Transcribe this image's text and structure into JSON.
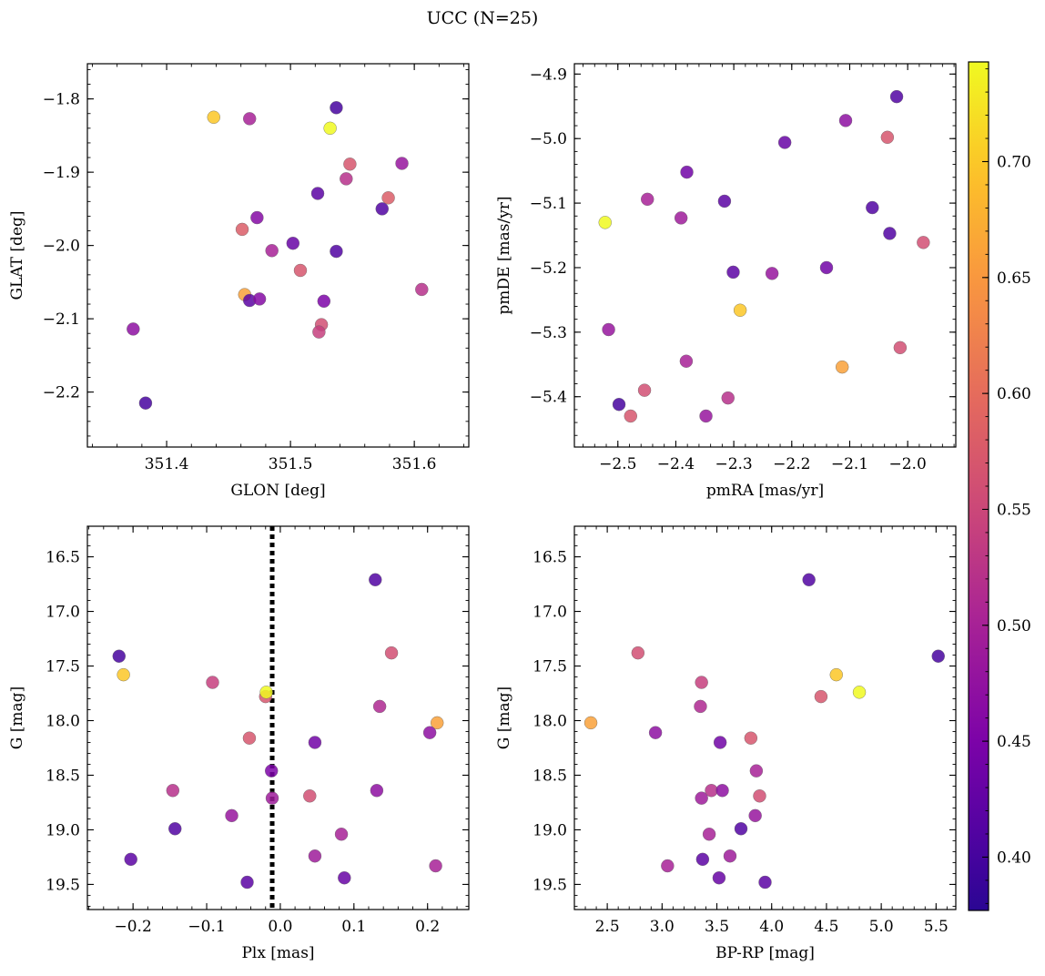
{
  "figure": {
    "title": "UCC (N=25)"
  },
  "colorbar": {
    "min": 0.377,
    "max": 0.743,
    "ticks": [
      0.4,
      0.45,
      0.5,
      0.55,
      0.6,
      0.65,
      0.7
    ],
    "tick_labels": [
      "0.40",
      "0.45",
      "0.50",
      "0.55",
      "0.60",
      "0.65",
      "0.70"
    ],
    "colormap": "plasma"
  },
  "chart_data": [
    {
      "type": "scatter",
      "panel": "top-left",
      "xlabel": "GLON [deg]",
      "ylabel": "GLAT [deg]",
      "xlim": [
        351.336,
        351.644
      ],
      "ylim": [
        -2.275,
        -1.752
      ],
      "y_inverted": false,
      "xticks": [
        351.4,
        351.5,
        351.6
      ],
      "xtick_labels": [
        "351.4",
        "351.5",
        "351.6"
      ],
      "yticks": [
        -1.8,
        -1.9,
        -2.0,
        -2.1,
        -2.2
      ],
      "ytick_labels": [
        "−1.8",
        "−1.9",
        "−2.0",
        "−2.1",
        "−2.2"
      ],
      "xminor": 0.02,
      "yminor": 0.02,
      "x": [
        351.438,
        351.467,
        351.537,
        351.532,
        351.548,
        351.59,
        351.579,
        351.522,
        351.473,
        351.461,
        351.485,
        351.502,
        351.508,
        351.574,
        351.606,
        351.463,
        351.467,
        351.475,
        351.527,
        351.525,
        351.523,
        351.373,
        351.383,
        351.537,
        351.545
      ],
      "y": [
        -1.825,
        -1.827,
        -1.812,
        -1.84,
        -1.889,
        -1.888,
        -1.935,
        -1.929,
        -1.962,
        -1.978,
        -2.007,
        -1.997,
        -2.034,
        -1.95,
        -2.06,
        -2.067,
        -2.075,
        -2.073,
        -2.076,
        -2.108,
        -2.118,
        -2.114,
        -2.215,
        -2.008,
        -1.909
      ],
      "color_values": [
        0.7,
        0.5,
        0.4,
        0.743,
        0.57,
        0.48,
        0.58,
        0.42,
        0.46,
        0.58,
        0.5,
        0.43,
        0.57,
        0.41,
        0.52,
        0.66,
        0.42,
        0.46,
        0.45,
        0.56,
        0.54,
        0.47,
        0.4,
        0.41,
        0.52
      ]
    },
    {
      "type": "scatter",
      "panel": "top-right",
      "xlabel": "pmRA [mas/yr]",
      "ylabel": "pmDE [mas/yr]",
      "xlim": [
        -2.575,
        -1.917
      ],
      "ylim": [
        -5.478,
        -4.884
      ],
      "y_inverted": false,
      "xticks": [
        -2.5,
        -2.4,
        -2.3,
        -2.2,
        -2.1,
        -2.0
      ],
      "xtick_labels": [
        "−2.5",
        "−2.4",
        "−2.3",
        "−2.2",
        "−2.1",
        "−2.0"
      ],
      "yticks": [
        -4.9,
        -5.0,
        -5.1,
        -5.2,
        -5.3,
        -5.4
      ],
      "ytick_labels": [
        "−4.9",
        "−5.0",
        "−5.1",
        "−5.2",
        "−5.3",
        "−5.4"
      ],
      "xminor": 0.02,
      "yminor": 0.02,
      "x": [
        -2.019,
        -2.107,
        -2.035,
        -2.212,
        -2.381,
        -2.449,
        -2.316,
        -2.391,
        -2.522,
        -2.061,
        -2.031,
        -1.973,
        -2.14,
        -2.234,
        -2.301,
        -2.289,
        -2.516,
        -2.382,
        -2.013,
        -2.113,
        -2.498,
        -2.454,
        -2.478,
        -2.348,
        -2.31
      ],
      "y": [
        -4.935,
        -4.972,
        -4.998,
        -5.006,
        -5.052,
        -5.094,
        -5.097,
        -5.123,
        -5.13,
        -5.107,
        -5.147,
        -5.161,
        -5.2,
        -5.209,
        -5.207,
        -5.266,
        -5.296,
        -5.345,
        -5.324,
        -5.354,
        -5.412,
        -5.39,
        -5.43,
        -5.43,
        -5.402
      ],
      "color_values": [
        0.41,
        0.47,
        0.57,
        0.43,
        0.44,
        0.5,
        0.42,
        0.49,
        0.743,
        0.41,
        0.41,
        0.56,
        0.44,
        0.48,
        0.42,
        0.7,
        0.48,
        0.5,
        0.56,
        0.66,
        0.4,
        0.56,
        0.57,
        0.48,
        0.52
      ]
    },
    {
      "type": "scatter",
      "panel": "bottom-left",
      "xlabel": "Plx [mas]",
      "ylabel": "G [mag]",
      "xlim": [
        -0.262,
        0.256
      ],
      "ylim": [
        19.73,
        16.22
      ],
      "y_inverted": true,
      "xticks": [
        -0.2,
        -0.1,
        0.0,
        0.1,
        0.2
      ],
      "xtick_labels": [
        "−0.2",
        "−0.1",
        "0.0",
        "0.1",
        "0.2"
      ],
      "yticks": [
        16.5,
        17.0,
        17.5,
        18.0,
        18.5,
        19.0,
        19.5
      ],
      "ytick_labels": [
        "16.5",
        "17.0",
        "17.5",
        "18.0",
        "18.5",
        "19.0",
        "19.5"
      ],
      "xminor": 0.02,
      "yminor": 0.1,
      "vline_x": -0.011,
      "x": [
        0.129,
        -0.219,
        0.151,
        -0.213,
        -0.092,
        -0.02,
        -0.019,
        0.135,
        0.213,
        0.203,
        -0.042,
        0.047,
        -0.012,
        -0.011,
        0.04,
        0.131,
        -0.146,
        -0.066,
        -0.143,
        0.083,
        -0.203,
        0.047,
        0.087,
        -0.045,
        0.211
      ],
      "y": [
        16.71,
        17.41,
        17.38,
        17.58,
        17.65,
        17.78,
        17.74,
        17.87,
        18.02,
        18.11,
        18.16,
        18.2,
        18.46,
        18.71,
        18.69,
        18.64,
        18.64,
        18.87,
        18.99,
        19.04,
        19.27,
        19.24,
        19.44,
        19.48,
        19.33
      ],
      "color_values": [
        0.41,
        0.4,
        0.56,
        0.7,
        0.54,
        0.57,
        0.743,
        0.51,
        0.66,
        0.47,
        0.57,
        0.44,
        0.45,
        0.49,
        0.56,
        0.47,
        0.52,
        0.48,
        0.41,
        0.5,
        0.42,
        0.49,
        0.43,
        0.42,
        0.5
      ]
    },
    {
      "type": "scatter",
      "panel": "bottom-right",
      "xlabel": "BP-RP [mag]",
      "ylabel": "G [mag]",
      "xlim": [
        2.2,
        5.68
      ],
      "ylim": [
        19.73,
        16.22
      ],
      "y_inverted": true,
      "xticks": [
        2.5,
        3.0,
        3.5,
        4.0,
        4.5,
        5.0,
        5.5
      ],
      "xtick_labels": [
        "2.5",
        "3.0",
        "3.5",
        "4.0",
        "4.5",
        "5.0",
        "5.5"
      ],
      "yticks": [
        16.5,
        17.0,
        17.5,
        18.0,
        18.5,
        19.0,
        19.5
      ],
      "ytick_labels": [
        "16.5",
        "17.0",
        "17.5",
        "18.0",
        "18.5",
        "19.0",
        "19.5"
      ],
      "xminor": 0.1,
      "yminor": 0.1,
      "x": [
        4.34,
        5.52,
        2.78,
        4.59,
        3.36,
        4.8,
        4.45,
        3.35,
        2.35,
        2.94,
        3.81,
        3.53,
        3.86,
        3.36,
        3.89,
        3.45,
        3.55,
        3.85,
        3.72,
        3.43,
        3.37,
        3.62,
        3.52,
        3.94,
        3.05
      ],
      "y": [
        16.71,
        17.41,
        17.38,
        17.58,
        17.65,
        17.74,
        17.78,
        17.87,
        18.02,
        18.11,
        18.16,
        18.2,
        18.46,
        18.71,
        18.69,
        18.64,
        18.64,
        18.87,
        18.99,
        19.04,
        19.27,
        19.24,
        19.44,
        19.48,
        19.33
      ],
      "color_values": [
        0.41,
        0.4,
        0.56,
        0.7,
        0.54,
        0.743,
        0.57,
        0.51,
        0.66,
        0.47,
        0.57,
        0.44,
        0.5,
        0.49,
        0.56,
        0.52,
        0.47,
        0.48,
        0.41,
        0.5,
        0.42,
        0.49,
        0.43,
        0.42,
        0.5
      ]
    }
  ]
}
